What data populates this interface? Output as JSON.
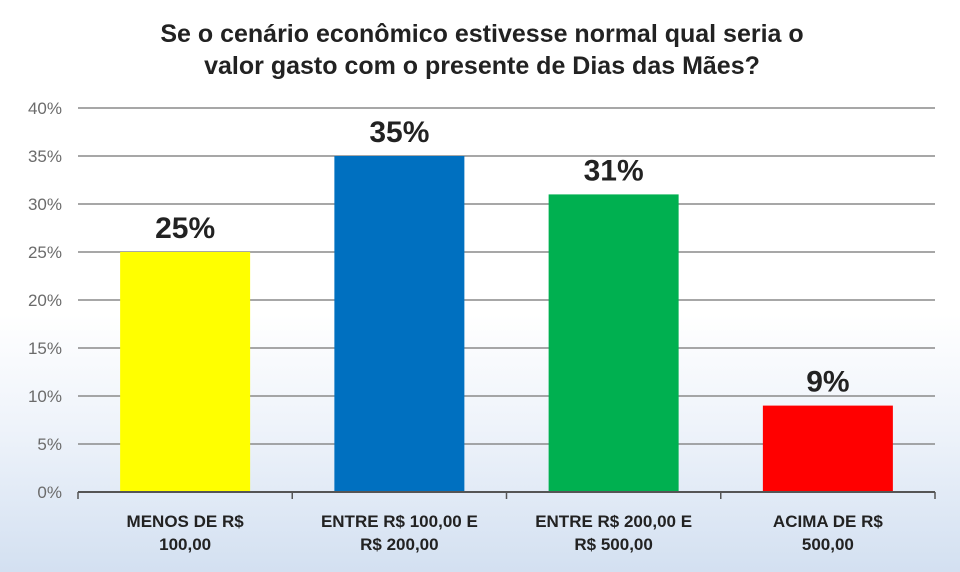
{
  "chart_data": {
    "type": "bar",
    "title_lines": [
      "Se o cenário econômico estivesse normal qual seria o",
      "valor gasto com o presente de Dias das Mães?"
    ],
    "categories": [
      [
        "MENOS DE R$",
        "100,00"
      ],
      [
        "ENTRE  R$ 100,00 E",
        "R$ 200,00"
      ],
      [
        "ENTRE  R$ 200,00 E",
        "R$ 500,00"
      ],
      [
        "ACIMA DE  R$",
        "500,00"
      ]
    ],
    "values": [
      25,
      35,
      31,
      9
    ],
    "data_labels": [
      "25%",
      "35%",
      "31%",
      "9%"
    ],
    "bar_colors": [
      "#ffff00",
      "#0070c0",
      "#00b050",
      "#ff0000"
    ],
    "ylim": [
      0,
      40
    ],
    "yticks": [
      0,
      5,
      10,
      15,
      20,
      25,
      30,
      35,
      40
    ],
    "ytick_labels": [
      "0%",
      "5%",
      "10%",
      "15%",
      "20%",
      "25%",
      "30%",
      "35%",
      "40%"
    ],
    "grid": true,
    "legend": "none",
    "xlabel": "",
    "ylabel": ""
  }
}
